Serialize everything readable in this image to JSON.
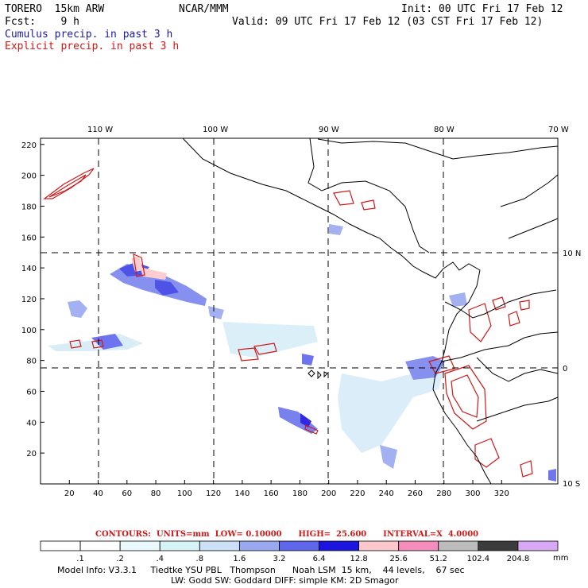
{
  "header": {
    "model": "TORERO  15km ARW",
    "org": "NCAR/MMM",
    "init": "Init: 00 UTC Fri 17 Feb 12",
    "fcst": "Fcst:    9 h",
    "valid": "Valid: 09 UTC Fri 17 Feb 12 (03 CST Fri 17 Feb 12)",
    "field1": "Cumulus precip. in past 3 h",
    "field2": "Explicit precip. in past 3 h"
  },
  "map": {
    "lon_labels": [
      "110 W",
      "100 W",
      "90 W",
      "80 W",
      "70 W"
    ],
    "lat_labels": [
      "10 N",
      "0",
      "10 S"
    ],
    "x_ticks": [
      "20",
      "40",
      "60",
      "80",
      "100",
      "120",
      "140",
      "160",
      "180",
      "200",
      "220",
      "240",
      "260",
      "280",
      "300",
      "320"
    ],
    "y_ticks": [
      "220",
      "200",
      "180",
      "160",
      "140",
      "120",
      "100",
      "80",
      "60",
      "40",
      "20"
    ]
  },
  "contours": {
    "text": "CONTOURS:  UNITS=mm  LOW= 0.10000      HIGH=  25.600      INTERVAL=X  4.0000"
  },
  "colorbar": {
    "labels": [
      ".1",
      ".2",
      ".4",
      ".8",
      "1.6",
      "3.2",
      "6.4",
      "12.8",
      "25.6",
      "51.2",
      "102.4",
      "204.8"
    ],
    "units": "mm",
    "colors": [
      "#ffffff",
      "#ffffff",
      "#eafafc",
      "#d4f4f8",
      "#cce0f8",
      "#9aa8f0",
      "#5e66ec",
      "#1c14e0",
      "#fcc8cc",
      "#f48cbc",
      "#bcbcbc",
      "#3c3c3c",
      "#d8a8f4"
    ]
  },
  "footer": {
    "line1": "Model Info: V3.3.1     Tiedtke YSU PBL   Thompson      Noah LSM  15 km,    44 levels,    67 sec",
    "line2": "LW: Godd SW: Goddard DIFF: simple KM: 2D Smagor"
  }
}
